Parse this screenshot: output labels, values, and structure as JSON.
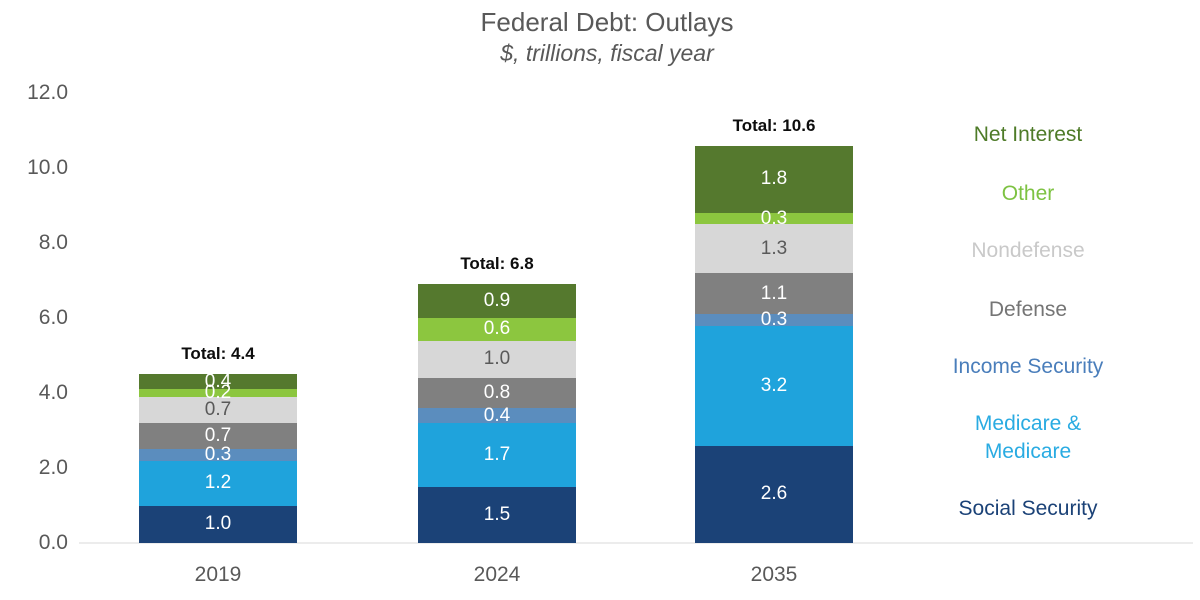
{
  "title": "Federal Debt: Outlays",
  "subtitle": "$, trillions, fiscal year",
  "chart_data": {
    "type": "bar",
    "stacked": true,
    "x_categories": [
      "2019",
      "2024",
      "2035"
    ],
    "series": [
      {
        "name": "Social Security",
        "color": "#1B4277",
        "label_color": "#FFFFFF",
        "values": [
          1.0,
          1.5,
          2.6
        ]
      },
      {
        "name": "Medicare & Medicare",
        "color": "#1FA3DC",
        "label_color": "#FFFFFF",
        "values": [
          1.2,
          1.7,
          3.2
        ]
      },
      {
        "name": "Income Security",
        "color": "#5B8DBE",
        "label_color": "#FFFFFF",
        "values": [
          0.3,
          0.4,
          0.3
        ]
      },
      {
        "name": "Defense",
        "color": "#808080",
        "label_color": "#FFFFFF",
        "values": [
          0.7,
          0.8,
          1.1
        ]
      },
      {
        "name": "Nondefense",
        "color": "#D7D7D7",
        "label_color": "#595959",
        "values": [
          0.7,
          1.0,
          1.3
        ]
      },
      {
        "name": "Other",
        "color": "#8CC63F",
        "label_color": "#FFFFFF",
        "values": [
          0.2,
          0.6,
          0.3
        ]
      },
      {
        "name": "Net Interest",
        "color": "#55792E",
        "label_color": "#FFFFFF",
        "values": [
          0.4,
          0.9,
          1.8
        ]
      }
    ],
    "totals": [
      "Total: 4.4",
      "Total: 6.8",
      "Total: 10.6"
    ],
    "y_axis": {
      "min": 0,
      "max": 12,
      "tick_step": 2,
      "tick_labels": [
        "0.0",
        "2.0",
        "4.0",
        "6.0",
        "8.0",
        "10.0",
        "12.0"
      ]
    },
    "gridlines": false,
    "legend_position": "right"
  },
  "legend": {
    "items": [
      {
        "lines": [
          "Net Interest"
        ],
        "color": "#4E7B28"
      },
      {
        "lines": [
          "Other"
        ],
        "color": "#7DC242"
      },
      {
        "lines": [
          "Nondefense"
        ],
        "color": "#C9C9C9"
      },
      {
        "lines": [
          "Defense"
        ],
        "color": "#757575"
      },
      {
        "lines": [
          "Income Security"
        ],
        "color": "#4A7EBB"
      },
      {
        "lines": [
          "Medicare &",
          "Medicare"
        ],
        "color": "#29ABE2"
      },
      {
        "lines": [
          "Social Security"
        ],
        "color": "#1B4277"
      }
    ]
  }
}
